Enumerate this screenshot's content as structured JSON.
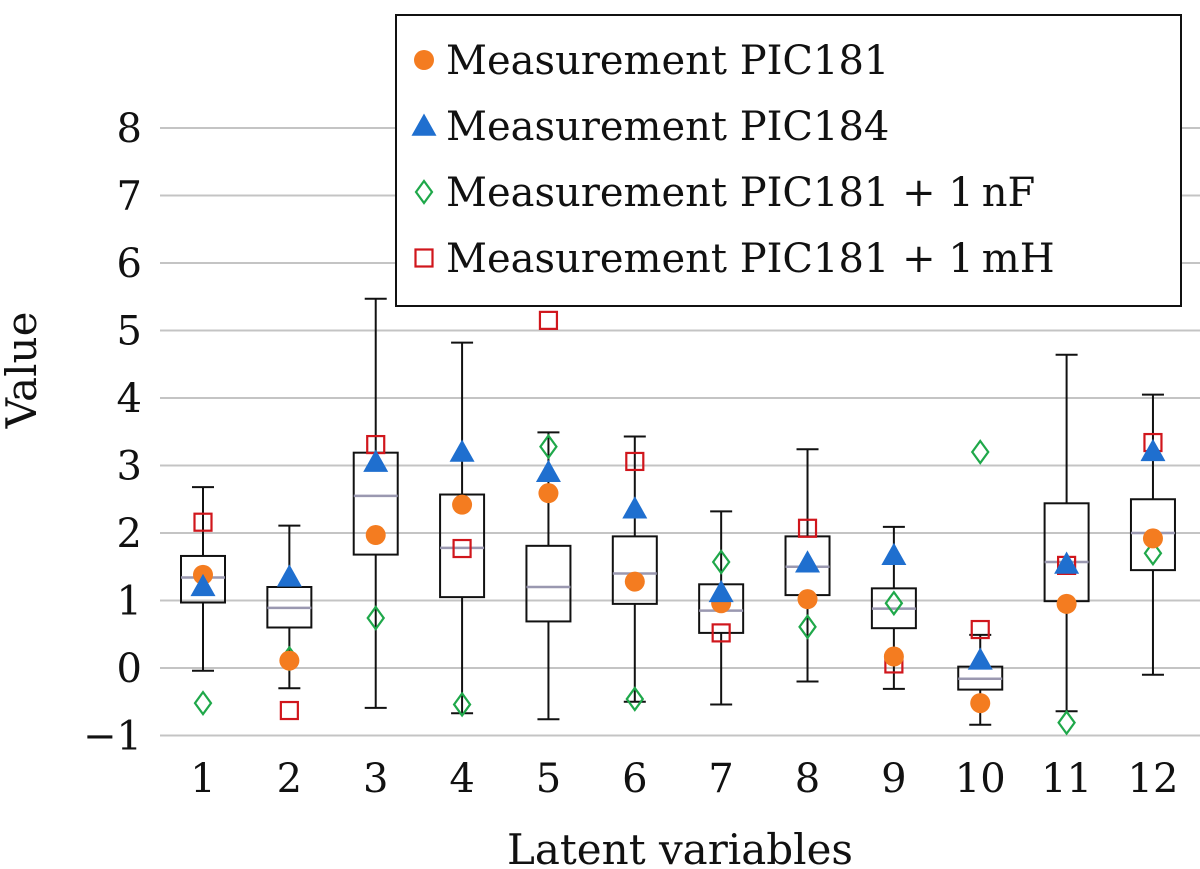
{
  "chart_data": {
    "type": "boxplot",
    "xlabel": "Latent variables",
    "ylabel": "Value",
    "ylim": [
      -1.15,
      8.6
    ],
    "yticks": [
      -1,
      0,
      1,
      2,
      3,
      4,
      5,
      6,
      7,
      8
    ],
    "ytick_labels": [
      "−1",
      "0",
      "1",
      "2",
      "3",
      "4",
      "5",
      "6",
      "7",
      "8"
    ],
    "categories": [
      "1",
      "2",
      "3",
      "4",
      "5",
      "6",
      "7",
      "8",
      "9",
      "10",
      "11",
      "12"
    ],
    "grid": true,
    "legend_position": "top-right",
    "boxes": [
      {
        "category": "1",
        "whisker_low": -0.04,
        "q1": 0.97,
        "median": 1.34,
        "q3": 1.66,
        "whisker_high": 2.68
      },
      {
        "category": "2",
        "whisker_low": -0.3,
        "q1": 0.6,
        "median": 0.89,
        "q3": 1.2,
        "whisker_high": 2.11
      },
      {
        "category": "3",
        "whisker_low": -0.59,
        "q1": 1.68,
        "median": 2.55,
        "q3": 3.19,
        "whisker_high": 5.47
      },
      {
        "category": "4",
        "whisker_low": -0.67,
        "q1": 1.05,
        "median": 1.78,
        "q3": 2.57,
        "whisker_high": 4.82
      },
      {
        "category": "5",
        "whisker_low": -0.76,
        "q1": 0.69,
        "median": 1.2,
        "q3": 1.81,
        "whisker_high": 3.49
      },
      {
        "category": "6",
        "whisker_low": -0.5,
        "q1": 0.95,
        "median": 1.4,
        "q3": 1.95,
        "whisker_high": 3.43
      },
      {
        "category": "7",
        "whisker_low": -0.54,
        "q1": 0.52,
        "median": 0.85,
        "q3": 1.24,
        "whisker_high": 2.32
      },
      {
        "category": "8",
        "whisker_low": -0.2,
        "q1": 1.08,
        "median": 1.5,
        "q3": 1.95,
        "whisker_high": 3.24
      },
      {
        "category": "9",
        "whisker_low": -0.31,
        "q1": 0.59,
        "median": 0.88,
        "q3": 1.18,
        "whisker_high": 2.09
      },
      {
        "category": "10",
        "whisker_low": -0.84,
        "q1": -0.32,
        "median": -0.16,
        "q3": 0.02,
        "whisker_high": 0.49
      },
      {
        "category": "11",
        "whisker_low": -0.64,
        "q1": 0.99,
        "median": 1.57,
        "q3": 2.44,
        "whisker_high": 4.64
      },
      {
        "category": "12",
        "whisker_low": -0.1,
        "q1": 1.45,
        "median": 2.0,
        "q3": 2.5,
        "whisker_high": 4.05
      }
    ],
    "series": [
      {
        "name": "Measurement PIC181",
        "marker": "circle",
        "color": "#f47c20",
        "values": [
          1.38,
          0.11,
          1.97,
          2.42,
          2.59,
          1.28,
          0.96,
          1.02,
          0.17,
          -0.52,
          0.95,
          1.92
        ]
      },
      {
        "name": "Measurement PIC184",
        "marker": "triangle",
        "color": "#1f6fcf",
        "values": [
          1.21,
          1.35,
          3.05,
          3.2,
          2.9,
          2.36,
          1.12,
          1.56,
          1.67,
          0.12,
          1.54,
          3.21
        ]
      },
      {
        "name": "Measurement PIC181 + 1 nF",
        "marker": "diamond",
        "color": "#1fa84a",
        "values": [
          -0.52,
          0.14,
          0.74,
          -0.54,
          3.28,
          -0.46,
          1.57,
          0.61,
          0.96,
          3.2,
          -0.81,
          1.7
        ]
      },
      {
        "name": "Measurement PIC181 + 1 mH",
        "marker": "square",
        "color": "#d0161c",
        "values": [
          2.16,
          -0.63,
          3.31,
          1.77,
          5.15,
          3.06,
          0.52,
          2.07,
          0.06,
          0.57,
          1.52,
          3.34
        ]
      }
    ]
  }
}
